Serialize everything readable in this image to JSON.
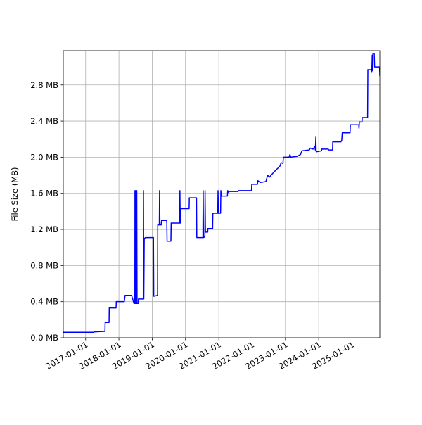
{
  "chart_data": {
    "type": "line",
    "title": "",
    "xlabel": "",
    "ylabel": "File Size (MB)",
    "grid": true,
    "legend": "none",
    "line_color": "#0000ff",
    "xlim": [
      "2016-05-01",
      "2025-11-01"
    ],
    "ylim": [
      0.0,
      3.18
    ],
    "x_ticks": [
      "2017-01-01",
      "2018-01-01",
      "2019-01-01",
      "2020-01-01",
      "2021-01-01",
      "2022-01-01",
      "2023-01-01",
      "2024-01-01",
      "2025-01-01"
    ],
    "y_ticks": [
      0.0,
      0.4,
      0.8,
      1.2,
      1.6,
      2.0,
      2.4,
      2.8
    ],
    "y_tick_labels": [
      "0.0 MB",
      "0.4 MB",
      "0.8 MB",
      "1.2 MB",
      "1.6 MB",
      "2.0 MB",
      "2.4 MB",
      "2.8 MB"
    ],
    "series": [
      {
        "points": [
          [
            "2016-05-01",
            0.06
          ],
          [
            "2017-04-01",
            0.06
          ],
          [
            "2017-04-05",
            0.065
          ],
          [
            "2017-08-01",
            0.07
          ],
          [
            "2017-08-03",
            0.17
          ],
          [
            "2017-09-15",
            0.17
          ],
          [
            "2017-09-17",
            0.33
          ],
          [
            "2017-12-01",
            0.33
          ],
          [
            "2017-12-03",
            0.4
          ],
          [
            "2018-03-01",
            0.4
          ],
          [
            "2018-03-10",
            0.47
          ],
          [
            "2018-05-20",
            0.47
          ],
          [
            "2018-06-15",
            0.38
          ],
          [
            "2018-06-25",
            0.38
          ],
          [
            "2018-06-26",
            1.63
          ],
          [
            "2018-06-28",
            0.38
          ],
          [
            "2018-07-02",
            1.63
          ],
          [
            "2018-07-05",
            0.38
          ],
          [
            "2018-07-10",
            1.63
          ],
          [
            "2018-07-13",
            0.38
          ],
          [
            "2018-07-16",
            1.63
          ],
          [
            "2018-07-19",
            0.38
          ],
          [
            "2018-08-01",
            0.38
          ],
          [
            "2018-08-03",
            0.43
          ],
          [
            "2018-09-25",
            0.43
          ],
          [
            "2018-09-27",
            1.63
          ],
          [
            "2018-10-01",
            0.43
          ],
          [
            "2018-10-06",
            1.1
          ],
          [
            "2018-10-20",
            1.11
          ],
          [
            "2019-01-15",
            1.11
          ],
          [
            "2019-01-18",
            0.46
          ],
          [
            "2019-03-01",
            0.47
          ],
          [
            "2019-03-03",
            1.25
          ],
          [
            "2019-03-20",
            1.25
          ],
          [
            "2019-03-23",
            1.63
          ],
          [
            "2019-03-27",
            1.25
          ],
          [
            "2019-04-10",
            1.25
          ],
          [
            "2019-04-14",
            1.3
          ],
          [
            "2019-06-10",
            1.3
          ],
          [
            "2019-06-13",
            1.07
          ],
          [
            "2019-07-25",
            1.07
          ],
          [
            "2019-07-28",
            1.27
          ],
          [
            "2019-10-28",
            1.27
          ],
          [
            "2019-11-01",
            1.63
          ],
          [
            "2019-11-05",
            1.27
          ],
          [
            "2019-11-08",
            1.43
          ],
          [
            "2020-02-10",
            1.43
          ],
          [
            "2020-02-12",
            1.55
          ],
          [
            "2020-05-01",
            1.55
          ],
          [
            "2020-05-04",
            1.11
          ],
          [
            "2020-07-10",
            1.11
          ],
          [
            "2020-07-13",
            1.63
          ],
          [
            "2020-07-17",
            1.11
          ],
          [
            "2020-08-01",
            1.12
          ],
          [
            "2020-08-03",
            1.63
          ],
          [
            "2020-08-07",
            1.17
          ],
          [
            "2020-09-01",
            1.17
          ],
          [
            "2020-09-03",
            1.21
          ],
          [
            "2020-10-25",
            1.21
          ],
          [
            "2020-10-27",
            1.38
          ],
          [
            "2020-12-20",
            1.38
          ],
          [
            "2020-12-23",
            1.63
          ],
          [
            "2020-12-27",
            1.38
          ],
          [
            "2021-01-20",
            1.38
          ],
          [
            "2021-01-23",
            1.63
          ],
          [
            "2021-01-27",
            1.57
          ],
          [
            "2021-04-05",
            1.57
          ],
          [
            "2021-04-08",
            1.63
          ],
          [
            "2021-04-12",
            1.61
          ],
          [
            "2021-04-20",
            1.62
          ],
          [
            "2021-08-01",
            1.62
          ],
          [
            "2021-08-05",
            1.63
          ],
          [
            "2021-12-25",
            1.63
          ],
          [
            "2021-12-28",
            1.7
          ],
          [
            "2022-03-01",
            1.7
          ],
          [
            "2022-03-05",
            1.74
          ],
          [
            "2022-04-01",
            1.72
          ],
          [
            "2022-06-01",
            1.73
          ],
          [
            "2022-06-20",
            1.8
          ],
          [
            "2022-07-10",
            1.78
          ],
          [
            "2022-09-01",
            1.84
          ],
          [
            "2022-11-01",
            1.9
          ],
          [
            "2022-11-15",
            1.94
          ],
          [
            "2022-12-05",
            1.93
          ],
          [
            "2022-12-10",
            2.0
          ],
          [
            "2023-02-10",
            2.0
          ],
          [
            "2023-02-20",
            2.03
          ],
          [
            "2023-03-01",
            2.0
          ],
          [
            "2023-05-10",
            2.01
          ],
          [
            "2023-06-15",
            2.03
          ],
          [
            "2023-07-01",
            2.07
          ],
          [
            "2023-09-20",
            2.08
          ],
          [
            "2023-10-01",
            2.1
          ],
          [
            "2023-11-01",
            2.09
          ],
          [
            "2023-11-20",
            2.12
          ],
          [
            "2023-11-25",
            2.08
          ],
          [
            "2023-12-01",
            2.23
          ],
          [
            "2023-12-04",
            2.06
          ],
          [
            "2024-02-01",
            2.07
          ],
          [
            "2024-02-03",
            2.09
          ],
          [
            "2024-04-15",
            2.09
          ],
          [
            "2024-04-17",
            2.08
          ],
          [
            "2024-06-01",
            2.08
          ],
          [
            "2024-06-03",
            2.17
          ],
          [
            "2024-09-01",
            2.17
          ],
          [
            "2024-09-10",
            2.19
          ],
          [
            "2024-09-15",
            2.27
          ],
          [
            "2024-12-10",
            2.27
          ],
          [
            "2024-12-13",
            2.36
          ],
          [
            "2025-03-15",
            2.36
          ],
          [
            "2025-03-18",
            2.32
          ],
          [
            "2025-03-22",
            2.39
          ],
          [
            "2025-04-20",
            2.39
          ],
          [
            "2025-04-23",
            2.44
          ],
          [
            "2025-06-20",
            2.44
          ],
          [
            "2025-06-23",
            2.97
          ],
          [
            "2025-08-01",
            2.97
          ],
          [
            "2025-08-05",
            2.94
          ],
          [
            "2025-08-10",
            3.13
          ],
          [
            "2025-08-14",
            2.96
          ],
          [
            "2025-08-18",
            3.15
          ],
          [
            "2025-09-01",
            3.15
          ],
          [
            "2025-09-05",
            3.0
          ],
          [
            "2025-10-29",
            3.0
          ],
          [
            "2025-11-01",
            2.9
          ]
        ]
      }
    ]
  }
}
